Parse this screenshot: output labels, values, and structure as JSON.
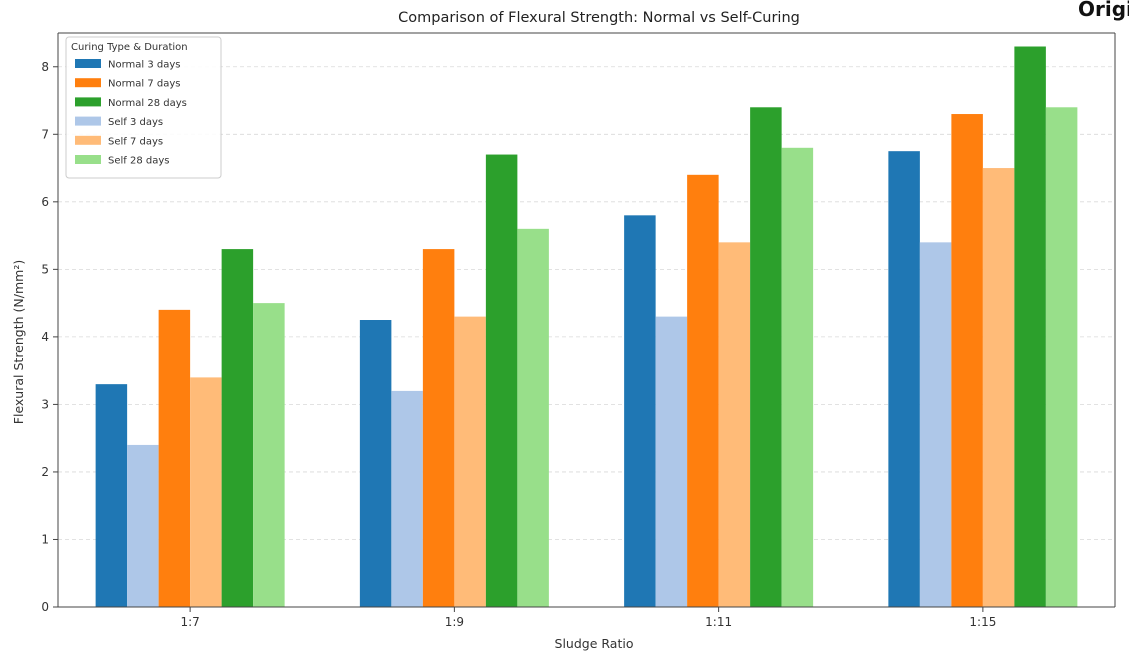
{
  "corner_label": "Original",
  "chart_data": {
    "type": "bar",
    "title": "Comparison of Flexural Strength: Normal vs Self-Curing",
    "xlabel": "Sludge Ratio",
    "ylabel": "Flexural Strength (N/mm²)",
    "ylim": [
      0,
      8.5
    ],
    "yticks": [
      0,
      1,
      2,
      3,
      4,
      5,
      6,
      7,
      8
    ],
    "grid": "horizontal, dashed",
    "legend_title": "Curing Type & Duration",
    "legend_position": "top-left",
    "categories": [
      "1:7",
      "1:9",
      "1:11",
      "1:15"
    ],
    "series": [
      {
        "name": "Normal 3 days",
        "color": "#1f77b4",
        "values": [
          3.3,
          4.25,
          5.8,
          6.75
        ]
      },
      {
        "name": "Self 3 days",
        "color": "#aec7e8",
        "values": [
          2.4,
          3.2,
          4.3,
          5.4
        ]
      },
      {
        "name": "Normal 7 days",
        "color": "#ff7f0e",
        "values": [
          4.4,
          5.3,
          6.4,
          7.3
        ]
      },
      {
        "name": "Self 7 days",
        "color": "#ffbb78",
        "values": [
          3.4,
          4.3,
          5.4,
          6.5
        ]
      },
      {
        "name": "Normal 28 days",
        "color": "#2ca02c",
        "values": [
          5.3,
          6.7,
          7.4,
          8.3
        ]
      },
      {
        "name": "Self 28 days",
        "color": "#98df8a",
        "values": [
          4.5,
          5.6,
          6.8,
          7.4
        ]
      }
    ],
    "legend_order": [
      "Normal 3 days",
      "Normal 7 days",
      "Normal 28 days",
      "Self 3 days",
      "Self 7 days",
      "Self 28 days"
    ]
  }
}
